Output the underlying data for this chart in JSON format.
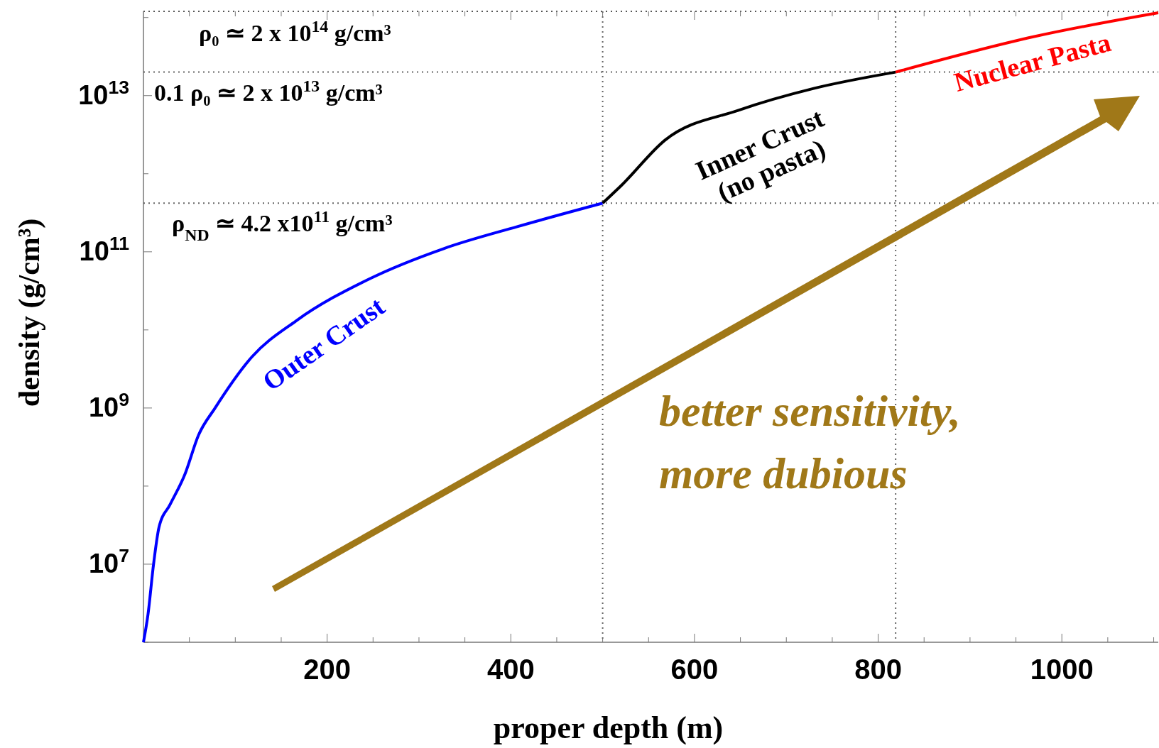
{
  "chart_data": {
    "type": "line",
    "xlabel": "proper depth (m)",
    "ylabel": "density (g/cm³)",
    "log": "y",
    "xlim": [
      0,
      1105
    ],
    "ylim": [
      1000000,
      120000000000000
    ],
    "xticks": [
      {
        "value": 50,
        "label": null
      },
      {
        "value": 100,
        "label": null
      },
      {
        "value": 150,
        "label": null
      },
      200,
      {
        "value": 250,
        "label": null
      },
      {
        "value": 300,
        "label": null
      },
      {
        "value": 350,
        "label": null
      },
      400,
      {
        "value": 450,
        "label": null
      },
      {
        "value": 500,
        "label": null
      },
      {
        "value": 550,
        "label": null
      },
      600,
      {
        "value": 650,
        "label": null
      },
      {
        "value": 700,
        "label": null
      },
      {
        "value": 750,
        "label": null
      },
      800,
      {
        "value": 850,
        "label": null
      },
      {
        "value": 900,
        "label": null
      },
      {
        "value": 950,
        "label": null
      },
      1000,
      {
        "value": 1050,
        "label": null
      },
      {
        "value": 1100,
        "label": null
      }
    ],
    "yticks": [
      {
        "value": 1000000,
        "label": null
      },
      {
        "value": 10000000,
        "label": "10$^{7}$"
      },
      {
        "value": 100000000,
        "label": null
      },
      {
        "value": 1000000000,
        "label": "10$^{9}$"
      },
      {
        "value": 10000000000,
        "label": null
      },
      {
        "value": 100000000000,
        "label": "10$^{11}$"
      },
      {
        "value": 1000000000000,
        "label": null
      },
      {
        "value": 10000000000000,
        "label": "10$^{13}$"
      },
      {
        "value": 100000000000000,
        "label": null
      }
    ],
    "series": [
      {
        "name": "Outer Crust",
        "color": "#0000ff",
        "x": [
          0,
          5,
          11,
          17,
          29,
          45,
          60,
          78,
          118,
          166,
          246,
          327,
          407,
          500
        ],
        "values": [
          1000000,
          2300000,
          10000000,
          30000000,
          58000000,
          140000000,
          450000000,
          1000000000,
          4500000000,
          13000000000,
          45000000000,
          110000000000,
          210000000000,
          420000000000
        ]
      },
      {
        "name": "Inner Crust (no pasta)",
        "color": "#000000",
        "x": [
          500,
          521,
          568,
          648,
          729,
          819
        ],
        "values": [
          420000000000,
          720000000000,
          2700000000000,
          6500000000000,
          12300000000000,
          20000000000000
        ]
      },
      {
        "name": "Nuclear Pasta",
        "color": "#ff0000",
        "x": [
          819,
          970,
          1105
        ],
        "values": [
          20000000000000,
          57000000000000,
          115000000000000
        ]
      }
    ],
    "ref_lines": [
      {
        "axis": "y",
        "value": 20000000000000,
        "label": "0.1 ρ₀ ≃ 2 x 10$^{13}$ g/cm³",
        "line_style": "dotted"
      },
      {
        "axis": "y",
        "value": 420000000000,
        "label": "ρ$_{ND}$ ≃ 4.2 x10$^{11}$ g/cm³",
        "line_style": "dotted"
      },
      {
        "axis": "x",
        "value": 500,
        "line_style": "dotted"
      },
      {
        "axis": "x",
        "value": 819,
        "line_style": "dotted"
      }
    ],
    "annotations": [
      "ρ₀ ≃ 2 x 10$^{14}$ g/cm³",
      "better sensitivity, more dubious"
    ],
    "legend": false,
    "grid": false,
    "marker": "none",
    "line_style": "solid"
  }
}
